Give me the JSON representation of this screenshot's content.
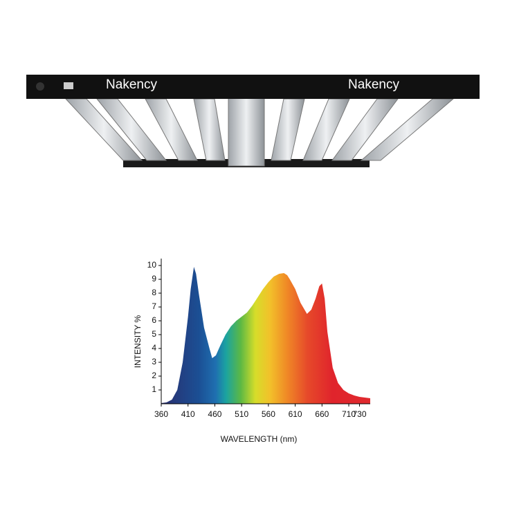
{
  "product": {
    "brand_labels": [
      "Nakency",
      "Nakency"
    ]
  },
  "chart_data": {
    "type": "area",
    "x_label": "WAVELENGTH (nm)",
    "y_label": "INTENSITY %",
    "x": [
      360,
      370,
      380,
      390,
      400,
      410,
      415,
      421,
      425,
      430,
      440,
      450,
      455,
      462,
      470,
      480,
      490,
      500,
      510,
      520,
      530,
      540,
      550,
      560,
      570,
      580,
      589,
      595,
      600,
      610,
      620,
      632,
      640,
      648,
      655,
      660,
      665,
      670,
      680,
      690,
      700,
      710,
      720,
      730,
      750
    ],
    "values": [
      0.05,
      0.1,
      0.3,
      1.0,
      3.0,
      6.3,
      8.3,
      9.9,
      9.4,
      8.0,
      5.5,
      4.0,
      3.3,
      3.5,
      4.2,
      5.0,
      5.6,
      6.0,
      6.3,
      6.6,
      7.1,
      7.7,
      8.3,
      8.8,
      9.2,
      9.4,
      9.45,
      9.3,
      9.0,
      8.3,
      7.3,
      6.5,
      6.8,
      7.6,
      8.5,
      8.7,
      7.6,
      5.2,
      2.6,
      1.5,
      1.0,
      0.75,
      0.6,
      0.5,
      0.4
    ],
    "xlim": [
      360,
      750
    ],
    "ylim": [
      0,
      10.5
    ],
    "xticks": [
      360,
      410,
      460,
      510,
      560,
      610,
      660,
      710,
      730
    ],
    "yticks": [
      1,
      2,
      3,
      4,
      5,
      6,
      7,
      8,
      9,
      10
    ]
  }
}
